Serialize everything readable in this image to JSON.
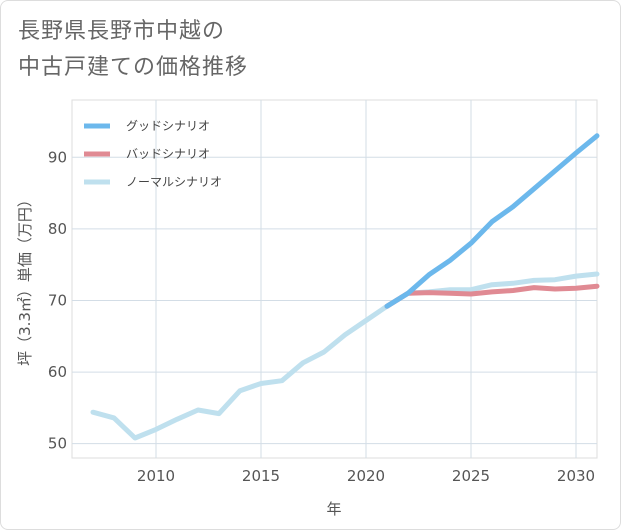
{
  "title": {
    "line1": "長野県長野市中越の",
    "line2": "中古戸建ての価格推移"
  },
  "chart_data": {
    "type": "line",
    "xlabel": "年",
    "ylabel": "坪（3.3㎡）単価（万円）",
    "xlim": [
      2006,
      2031
    ],
    "ylim": [
      48,
      98
    ],
    "xticks": [
      2010,
      2015,
      2020,
      2025,
      2030
    ],
    "yticks": [
      50,
      60,
      70,
      80,
      90
    ],
    "grid": true,
    "legend_position": "top-left",
    "series": [
      {
        "name": "グッドシナリオ",
        "color": "#6cb8ec",
        "x": [
          2021,
          2022,
          2023,
          2024,
          2025,
          2026,
          2027,
          2028,
          2029,
          2030,
          2031
        ],
        "values": [
          69.2,
          71.0,
          73.6,
          75.6,
          78.0,
          81.0,
          83.1,
          85.6,
          88.1,
          90.6,
          93.0
        ]
      },
      {
        "name": "バッドシナリオ",
        "color": "#e08a93",
        "x": [
          2021,
          2022,
          2023,
          2024,
          2025,
          2026,
          2027,
          2028,
          2029,
          2030,
          2031
        ],
        "values": [
          69.2,
          71.0,
          71.1,
          71.0,
          70.9,
          71.2,
          71.4,
          71.8,
          71.6,
          71.7,
          72.0
        ]
      },
      {
        "name": "ノーマルシナリオ",
        "color": "#bfe0ee",
        "x": [
          2007,
          2008,
          2009,
          2010,
          2011,
          2012,
          2013,
          2014,
          2015,
          2016,
          2017,
          2018,
          2019,
          2020,
          2021,
          2022,
          2023,
          2024,
          2025,
          2026,
          2027,
          2028,
          2029,
          2030,
          2031
        ],
        "values": [
          54.4,
          53.6,
          50.8,
          52.0,
          53.4,
          54.7,
          54.2,
          57.4,
          58.4,
          58.8,
          61.3,
          62.8,
          65.2,
          67.2,
          69.2,
          71.0,
          71.2,
          71.5,
          71.5,
          72.2,
          72.4,
          72.8,
          72.9,
          73.4,
          73.7
        ]
      }
    ]
  }
}
